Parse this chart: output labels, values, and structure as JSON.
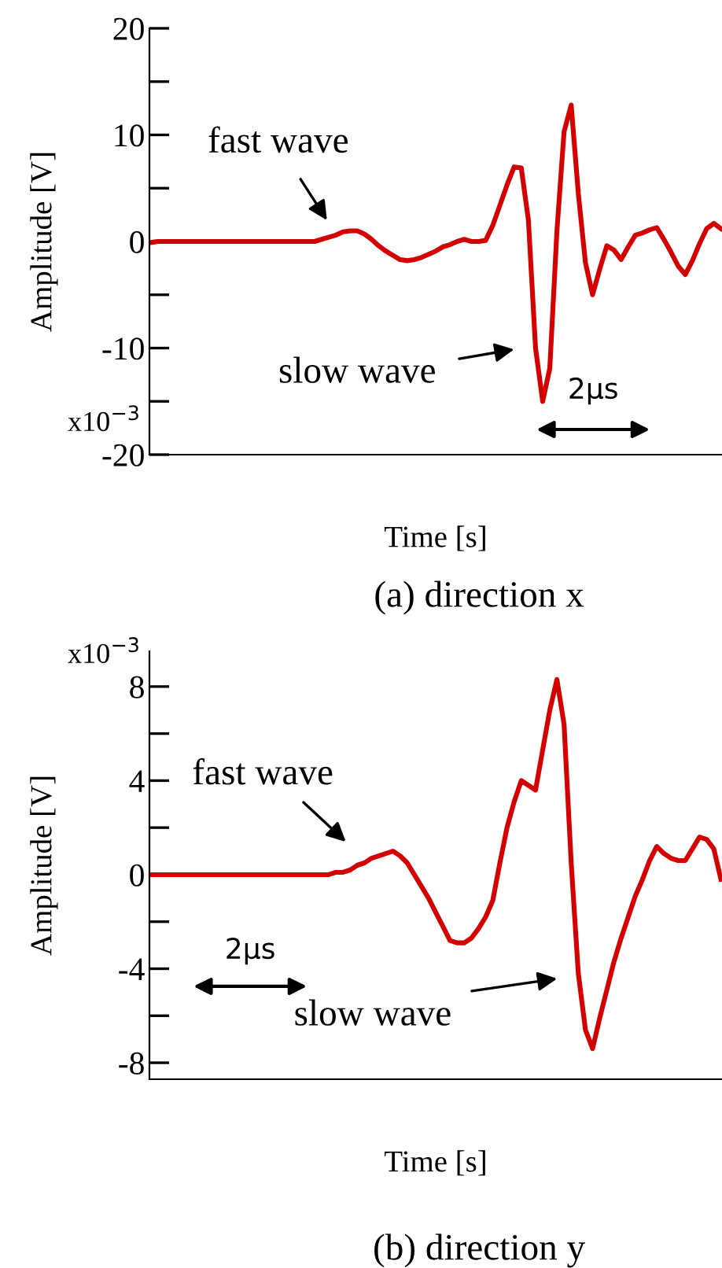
{
  "chart_data": [
    {
      "type": "line",
      "title": "(a) direction x",
      "xlabel": "Time [s]",
      "ylabel": "Amplitude [V]",
      "categories": [
        null,
        null,
        null,
        null,
        null,
        null,
        null,
        null,
        null,
        null,
        null,
        null,
        null,
        null,
        null,
        null,
        null,
        null,
        null,
        null,
        null,
        null,
        null,
        null,
        null,
        null,
        null,
        null,
        null,
        null,
        null,
        null,
        null,
        null,
        null,
        null,
        null,
        null,
        null,
        null,
        null,
        null,
        null,
        null,
        null,
        null,
        null,
        null,
        null,
        null,
        null,
        null,
        null,
        null,
        null,
        null,
        null,
        null,
        null,
        null,
        null,
        null,
        null,
        null,
        null,
        null,
        null,
        null,
        null,
        null,
        null,
        null,
        null,
        null,
        null,
        null,
        null,
        null,
        null,
        null,
        null
      ],
      "ylim": [
        -20,
        20
      ],
      "yticks": [
        -20,
        {
          "value": -15,
          "label": null
        },
        -10,
        {
          "value": -5,
          "label": null
        },
        0,
        {
          "value": 5,
          "label": null
        },
        10,
        {
          "value": 15,
          "label": null
        },
        20
      ],
      "tick_labels": "y",
      "grid": false,
      "marker": "none",
      "line_style": "solid",
      "annotations": [
        "fast wave",
        "slow wave",
        "2μs",
        "x10$^{−3}$"
      ],
      "series": [
        {
          "color": "#d40000",
          "values": [
            -0.1,
            0,
            0,
            0,
            0,
            0,
            0,
            0,
            0,
            0,
            0,
            0,
            0,
            0,
            0,
            0,
            0,
            0,
            0,
            0,
            0,
            0,
            0,
            0,
            0.2,
            0.4,
            0.6,
            0.9,
            1.0,
            1.0,
            0.7,
            0.2,
            -0.4,
            -0.9,
            -1.3,
            -1.7,
            -1.8,
            -1.7,
            -1.5,
            -1.2,
            -0.9,
            -0.5,
            -0.3,
            0,
            0.2,
            0,
            0,
            0.1,
            1.5,
            3.4,
            5.3,
            7.0,
            6.9,
            2.0,
            -10.0,
            -15.0,
            -11.9,
            1.0,
            10.3,
            12.8,
            4.5,
            -2.0,
            -5.0,
            -2.6,
            -0.4,
            -0.8,
            -1.7,
            -0.5,
            0.6,
            0.8,
            1.1,
            1.3,
            0.2,
            -1.0,
            -2.3,
            -3.1,
            -1.8,
            -0.2,
            1.2,
            1.7,
            1.2
          ]
        }
      ]
    },
    {
      "type": "line",
      "title": "(b) direction y",
      "xlabel": "Time [s]",
      "ylabel": "Amplitude [V]",
      "categories": [
        null,
        null,
        null,
        null,
        null,
        null,
        null,
        null,
        null,
        null,
        null,
        null,
        null,
        null,
        null,
        null,
        null,
        null,
        null,
        null,
        null,
        null,
        null,
        null,
        null,
        null,
        null,
        null,
        null,
        null,
        null,
        null,
        null,
        null,
        null,
        null,
        null,
        null,
        null,
        null,
        null,
        null,
        null,
        null,
        null,
        null,
        null,
        null,
        null,
        null,
        null,
        null,
        null,
        null,
        null,
        null,
        null,
        null,
        null,
        null,
        null,
        null,
        null,
        null,
        null,
        null,
        null,
        null,
        null,
        null,
        null,
        null,
        null,
        null,
        null,
        null,
        null,
        null,
        null,
        null,
        null
      ],
      "ylim": [
        -8.7,
        9.5
      ],
      "yticks": [
        -8,
        {
          "value": -6,
          "label": null
        },
        -4,
        {
          "value": -2,
          "label": null
        },
        0,
        {
          "value": 2,
          "label": null
        },
        4,
        {
          "value": 6,
          "label": null
        },
        8
      ],
      "tick_labels": "y",
      "grid": false,
      "marker": "none",
      "line_style": "solid",
      "series": [
        {
          "color": "#d40000",
          "values": [
            0,
            0,
            0,
            0,
            0,
            0,
            0,
            0,
            0,
            0,
            0,
            0,
            0,
            0,
            0,
            0,
            0,
            0,
            0,
            0,
            0,
            0,
            0,
            0,
            0,
            0,
            0.1,
            0.1,
            0.2,
            0.4,
            0.5,
            0.7,
            0.8,
            0.9,
            1.0,
            0.8,
            0.5,
            0,
            -0.5,
            -1.0,
            -1.6,
            -2.2,
            -2.8,
            -2.9,
            -2.9,
            -2.7,
            -2.3,
            -1.8,
            -1.1,
            0.5,
            2.0,
            3.1,
            4.0,
            3.8,
            3.6,
            5.3,
            7.0,
            8.3,
            6.4,
            0.5,
            -4.2,
            -6.6,
            -7.4,
            -6.1,
            -4.9,
            -3.7,
            -2.7,
            -1.8,
            -0.9,
            -0.2,
            0.6,
            1.2,
            0.9,
            0.7,
            0.6,
            0.6,
            1.1,
            1.6,
            1.5,
            1.1,
            -0.2
          ]
        }
      ],
      "annotations": [
        "fast wave",
        "slow wave",
        "2μs",
        "x10$^{−3}$"
      ]
    }
  ]
}
